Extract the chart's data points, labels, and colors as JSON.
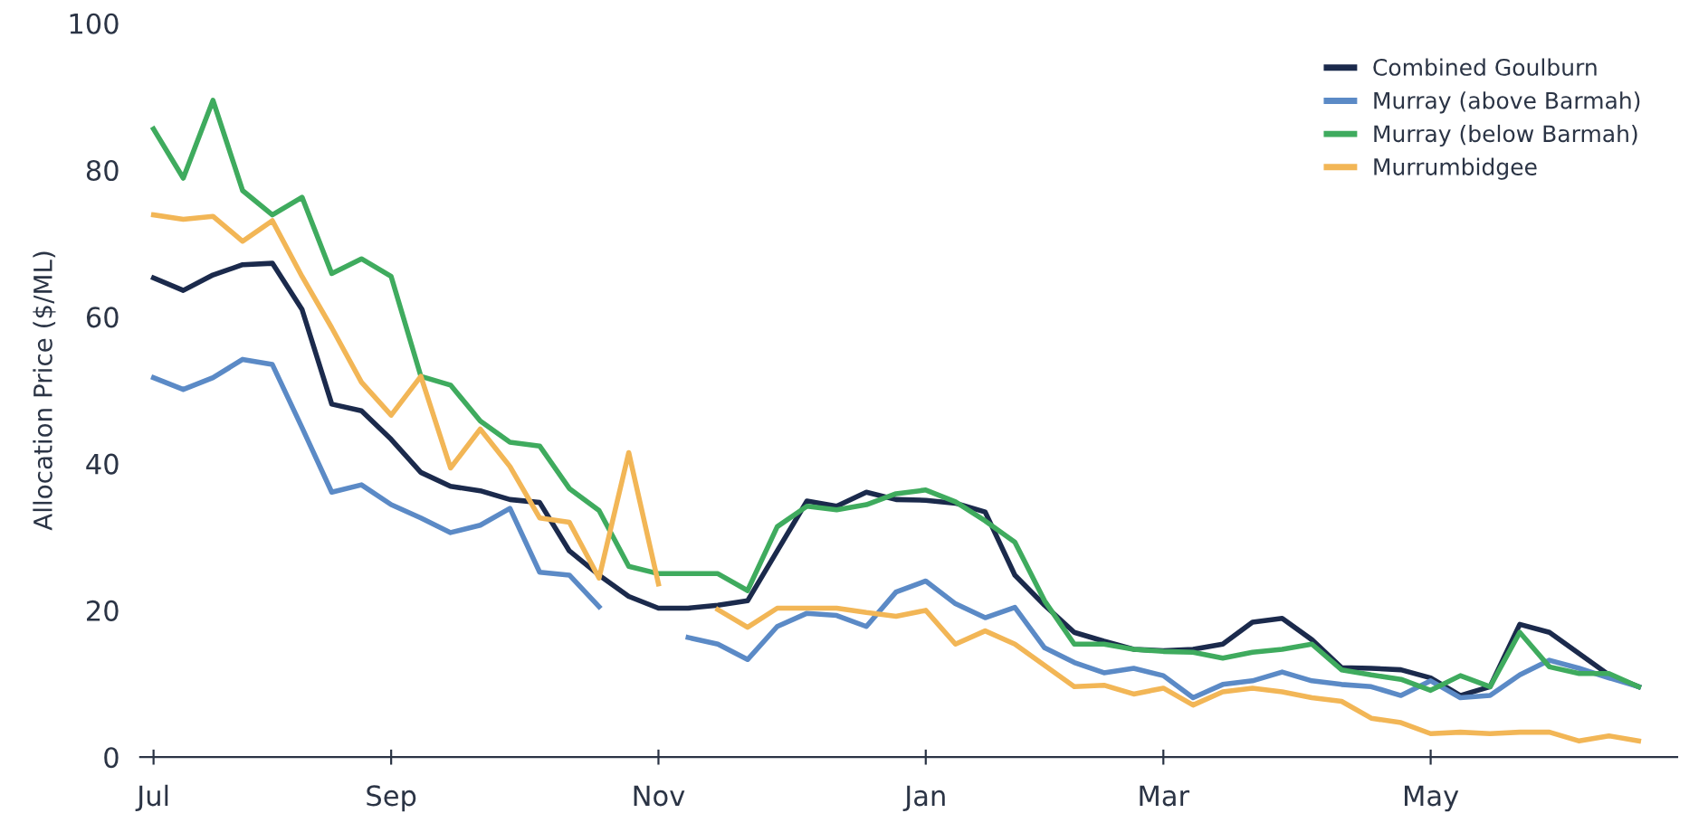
{
  "chart_data": {
    "type": "line",
    "ylabel": "Allocation Price ($/ML)",
    "categories": [
      "Jul",
      null,
      null,
      null,
      null,
      null,
      null,
      null,
      "Sep",
      null,
      null,
      null,
      null,
      null,
      null,
      null,
      null,
      "Nov",
      null,
      null,
      null,
      null,
      null,
      null,
      null,
      null,
      "Jan",
      null,
      null,
      null,
      null,
      null,
      null,
      null,
      "Mar",
      null,
      null,
      null,
      null,
      null,
      null,
      null,
      null,
      "May",
      null,
      null,
      null,
      null,
      null,
      null,
      null
    ],
    "ylim": [
      0,
      100
    ],
    "yticks": [
      0,
      20,
      40,
      60,
      80,
      100
    ],
    "grid": false,
    "legend": "top right",
    "marker": "none",
    "line_style": "solid",
    "series": [
      {
        "name": "Combined Goulburn",
        "color": "#1b2a4c",
        "values": [
          65.3,
          63.6,
          65.7,
          67.1,
          67.3,
          61.0,
          48.1,
          47.2,
          43.3,
          38.8,
          36.9,
          36.3,
          35.1,
          34.7,
          28.1,
          24.8,
          21.9,
          20.3,
          20.3,
          20.7,
          21.3,
          28.1,
          34.9,
          34.2,
          36.1,
          35.1,
          35.0,
          34.6,
          33.4,
          24.8,
          20.7,
          17.0,
          15.8,
          14.7,
          14.5,
          14.7,
          15.4,
          18.4,
          18.9,
          16.0,
          12.2,
          12.1,
          11.9,
          10.8,
          8.4,
          9.6,
          18.1,
          17.0,
          14.1,
          11.2,
          9.6
        ]
      },
      {
        "name": "Murray (above Barmah)",
        "color": "#5b8ac6",
        "values": [
          51.7,
          50.1,
          51.7,
          54.2,
          53.5,
          44.9,
          36.1,
          37.1,
          34.4,
          32.6,
          30.6,
          31.6,
          33.9,
          25.2,
          24.8,
          20.5,
          null,
          null,
          16.3,
          15.4,
          13.3,
          17.8,
          19.6,
          19.3,
          17.8,
          22.5,
          24.0,
          20.9,
          19.0,
          20.4,
          14.9,
          12.9,
          11.5,
          12.1,
          11.1,
          8.1,
          9.9,
          10.4,
          11.6,
          10.4,
          9.9,
          9.6,
          8.4,
          10.4,
          8.1,
          8.4,
          11.2,
          13.2,
          12.1,
          10.8,
          9.6
        ]
      },
      {
        "name": "Murray (below Barmah)",
        "color": "#3fab5e",
        "values": [
          85.6,
          78.9,
          89.5,
          77.2,
          73.9,
          76.3,
          65.9,
          67.9,
          65.5,
          51.9,
          50.7,
          45.8,
          42.9,
          42.4,
          36.6,
          33.6,
          26.0,
          25.0,
          25.0,
          25.0,
          22.7,
          31.4,
          34.2,
          33.7,
          34.4,
          35.9,
          36.4,
          34.8,
          32.2,
          29.3,
          21.3,
          15.4,
          15.4,
          14.7,
          14.4,
          14.3,
          13.5,
          14.3,
          14.7,
          15.4,
          11.9,
          11.2,
          10.6,
          9.1,
          11.1,
          9.6,
          17.0,
          12.3,
          11.4,
          11.4,
          9.6
        ]
      },
      {
        "name": "Murrumbidgee",
        "color": "#f2b656",
        "values": [
          73.9,
          73.3,
          73.7,
          70.3,
          73.1,
          65.5,
          58.5,
          51.1,
          46.6,
          51.9,
          39.4,
          44.7,
          39.6,
          32.6,
          32.0,
          24.4,
          41.5,
          23.6,
          null,
          20.1,
          17.7,
          20.3,
          20.3,
          20.3,
          19.7,
          19.2,
          20.0,
          15.4,
          17.2,
          15.4,
          12.5,
          9.6,
          9.8,
          8.6,
          9.4,
          7.1,
          8.9,
          9.4,
          8.9,
          8.1,
          7.6,
          5.3,
          4.7,
          3.2,
          3.4,
          3.2,
          3.4,
          3.4,
          2.2,
          2.9,
          2.2
        ]
      }
    ]
  }
}
